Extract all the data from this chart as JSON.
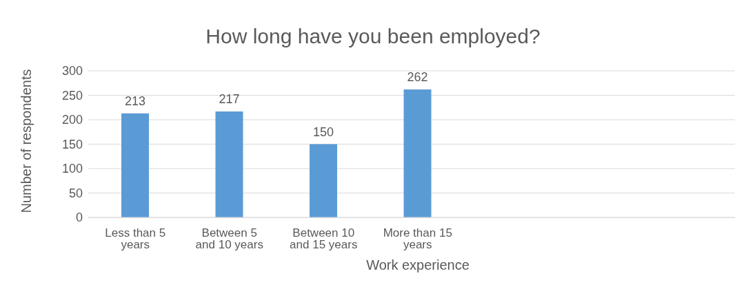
{
  "chart_data": {
    "type": "bar",
    "title": "How long have you been employed?",
    "xlabel": "Work experience",
    "ylabel": "Number of respondents",
    "categories": [
      "Less than 5 years",
      "Between 5 and 10 years",
      "Between 10 and 15 years",
      "More than 15 years"
    ],
    "series": [
      {
        "color": "#5b9bd5",
        "values": [
          213,
          217,
          150,
          262
        ]
      }
    ],
    "ylim": [
      0,
      300
    ],
    "yticks": [
      0,
      50,
      100,
      150,
      200,
      250,
      300
    ],
    "grid": "y",
    "data_labels": true,
    "legend": false
  }
}
